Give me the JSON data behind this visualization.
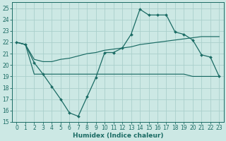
{
  "xlabel": "Humidex (Indice chaleur)",
  "bg_color": "#cce8e4",
  "grid_color": "#aacfcb",
  "line_color": "#1a6b64",
  "xlim": [
    -0.5,
    23.5
  ],
  "ylim": [
    15,
    25.5
  ],
  "x_ticks": [
    0,
    1,
    2,
    3,
    4,
    5,
    6,
    7,
    8,
    9,
    10,
    11,
    12,
    13,
    14,
    15,
    16,
    17,
    18,
    19,
    20,
    21,
    22,
    23
  ],
  "yticks": [
    15,
    16,
    17,
    18,
    19,
    20,
    21,
    22,
    23,
    24,
    25
  ],
  "s1_x": [
    0,
    1,
    2,
    3,
    4,
    5,
    6,
    7,
    8,
    9,
    10,
    11,
    12,
    13,
    14,
    15,
    16,
    17,
    18,
    19,
    20,
    21,
    22,
    23
  ],
  "s1_y": [
    22.0,
    21.8,
    20.2,
    19.2,
    18.1,
    17.0,
    15.8,
    15.5,
    17.2,
    18.9,
    21.1,
    21.1,
    21.5,
    22.7,
    24.9,
    24.4,
    24.4,
    24.4,
    22.9,
    22.7,
    22.2,
    20.9,
    20.7,
    19.0
  ],
  "s2_x": [
    0,
    1,
    2,
    3,
    4,
    5,
    6,
    7,
    8,
    9,
    10,
    11,
    12,
    13,
    14,
    15,
    16,
    17,
    18,
    19,
    20,
    21,
    22,
    23
  ],
  "s2_y": [
    22.0,
    21.8,
    19.2,
    19.2,
    19.2,
    19.2,
    19.2,
    19.2,
    19.2,
    19.2,
    19.2,
    19.2,
    19.2,
    19.2,
    19.2,
    19.2,
    19.2,
    19.2,
    19.2,
    19.2,
    19.0,
    19.0,
    19.0,
    19.0
  ],
  "s3_x": [
    0,
    1,
    2,
    3,
    4,
    5,
    6,
    7,
    8,
    9,
    10,
    11,
    12,
    13,
    14,
    15,
    16,
    17,
    18,
    19,
    20,
    21,
    22,
    23
  ],
  "s3_y": [
    22.0,
    21.8,
    20.5,
    20.3,
    20.3,
    20.5,
    20.6,
    20.8,
    21.0,
    21.1,
    21.3,
    21.4,
    21.5,
    21.6,
    21.8,
    21.9,
    22.0,
    22.1,
    22.2,
    22.3,
    22.4,
    22.5,
    22.5,
    22.5
  ],
  "tick_fontsize": 5.5,
  "xlabel_fontsize": 6.5
}
